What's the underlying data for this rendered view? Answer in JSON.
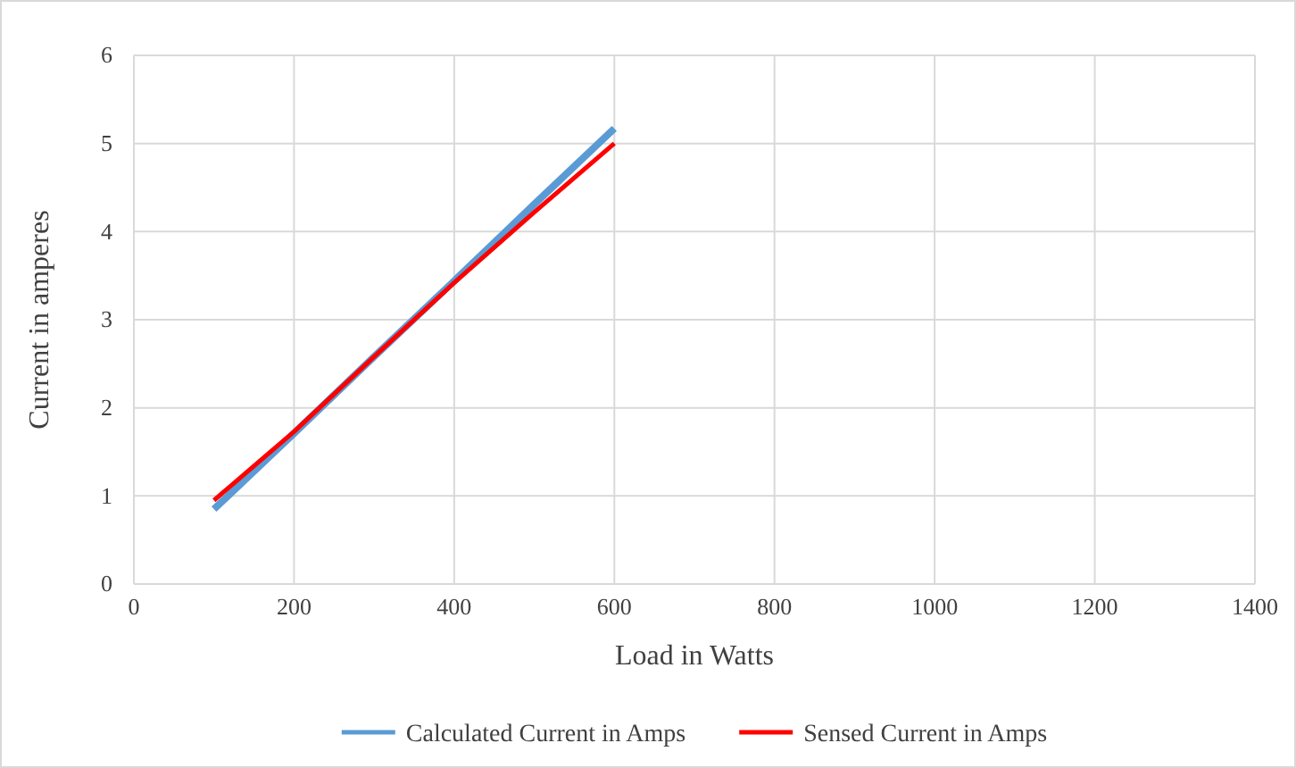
{
  "chart_data": {
    "type": "line",
    "xlabel": "Load in Watts",
    "ylabel": "Current in amperes",
    "x": [
      100,
      200,
      300,
      400,
      500,
      600
    ],
    "series": [
      {
        "name": "Calculated Current in Amps",
        "color": "#5b9bd5",
        "values": [
          0.85,
          1.71,
          2.58,
          3.44,
          4.31,
          5.17
        ]
      },
      {
        "name": "Sensed Current in Amps",
        "color": "#ff0000",
        "values": [
          0.95,
          1.73,
          2.58,
          3.42,
          4.22,
          5.0
        ]
      }
    ],
    "xlim": [
      0,
      1400
    ],
    "xticks": [
      0,
      200,
      400,
      600,
      800,
      1000,
      1200,
      1400
    ],
    "ylim": [
      0,
      6
    ],
    "yticks": [
      0,
      1,
      2,
      3,
      4,
      5,
      6
    ],
    "grid": true,
    "legend": "bottom",
    "marker": "none",
    "line_style": "solid"
  }
}
